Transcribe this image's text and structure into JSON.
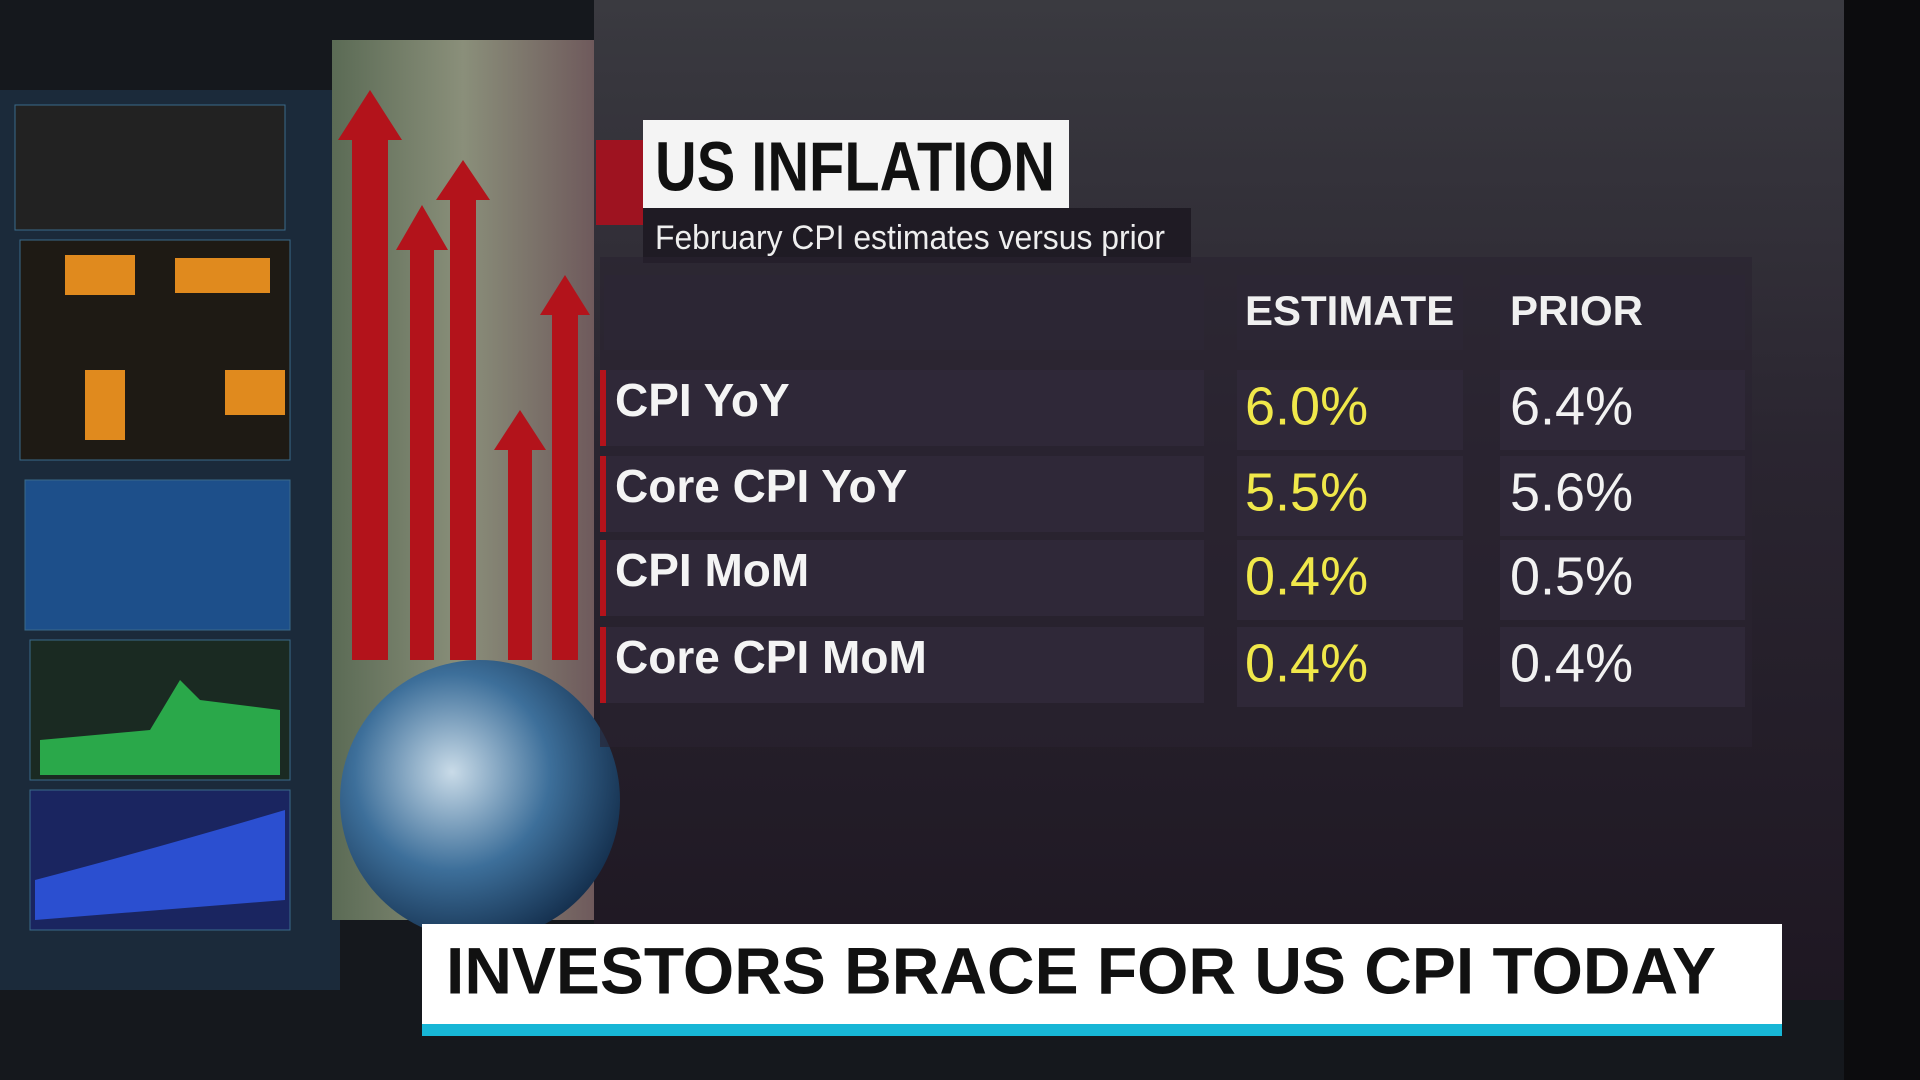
{
  "header": {
    "title": "US INFLATION",
    "subtitle": "February CPI estimates versus prior"
  },
  "table": {
    "columns": [
      "ESTIMATE",
      "PRIOR"
    ],
    "rows": [
      [
        "CPI YoY",
        "6.0%",
        "6.4%"
      ],
      [
        "Core CPI YoY",
        "5.5%",
        "5.6%"
      ],
      [
        "CPI MoM",
        "0.4%",
        "0.5%"
      ],
      [
        "Core CPI MoM",
        "0.4%",
        "0.4%"
      ]
    ]
  },
  "banner": {
    "headline": "INVESTORS BRACE FOR US CPI TODAY"
  }
}
